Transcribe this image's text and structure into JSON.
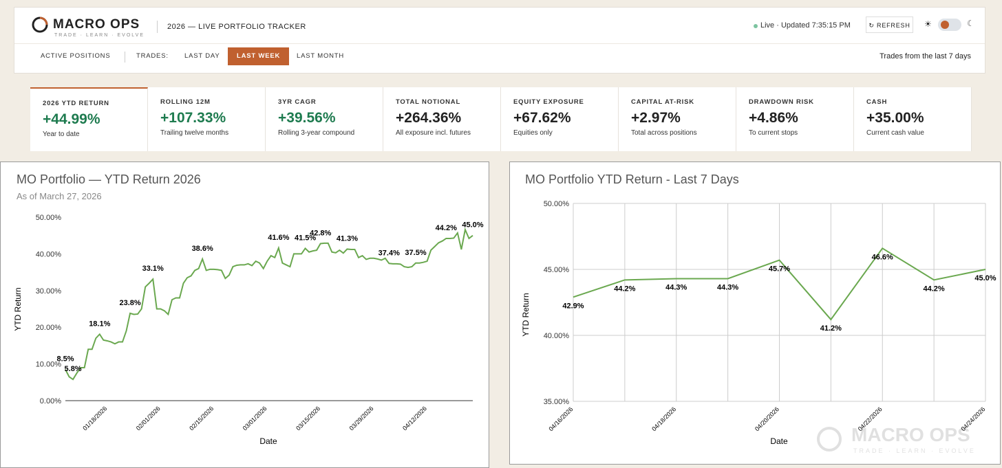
{
  "header": {
    "logo": "MACRO OPS",
    "tagline": "TRADE · LEARN · EVOLVE",
    "title": "2026 — LIVE PORTFOLIO TRACKER",
    "status": "Live · Updated 7:35:15 PM",
    "refresh": "REFRESH"
  },
  "nav": {
    "active_positions": "ACTIVE POSITIONS",
    "trades_label": "TRADES:",
    "tabs": [
      "LAST DAY",
      "LAST WEEK",
      "LAST MONTH"
    ],
    "note": "Trades from the last 7 days"
  },
  "kpis": [
    {
      "label": "2026 YTD RETURN",
      "value": "+44.99%",
      "sub": "Year to date"
    },
    {
      "label": "ROLLING 12M",
      "value": "+107.33%",
      "sub": "Trailing twelve months"
    },
    {
      "label": "3YR CAGR",
      "value": "+39.56%",
      "sub": "Rolling 3-year compound"
    },
    {
      "label": "TOTAL NOTIONAL",
      "value": "+264.36%",
      "sub": "All exposure incl. futures"
    },
    {
      "label": "EQUITY EXPOSURE",
      "value": "+67.62%",
      "sub": "Equities only"
    },
    {
      "label": "CAPITAL AT-RISK",
      "value": "+2.97%",
      "sub": "Total across positions"
    },
    {
      "label": "DRAWDOWN RISK",
      "value": "+4.86%",
      "sub": "To current stops"
    },
    {
      "label": "CASH",
      "value": "+35.00%",
      "sub": "Current cash value"
    }
  ],
  "chart_data": [
    {
      "type": "line",
      "title": "MO Portfolio — YTD Return 2026",
      "subtitle": "As of March 27, 2026",
      "x_label": "Date",
      "y_label": "YTD Return",
      "grid": false,
      "categories": [
        null,
        null,
        null,
        null,
        null,
        null,
        null,
        null,
        null,
        null,
        null,
        "01/18/2026",
        null,
        null,
        null,
        null,
        null,
        null,
        null,
        null,
        null,
        null,
        null,
        null,
        null,
        "02/01/2026",
        null,
        null,
        null,
        null,
        null,
        null,
        null,
        null,
        null,
        null,
        null,
        null,
        null,
        "02/15/2026",
        null,
        null,
        null,
        null,
        null,
        null,
        null,
        null,
        null,
        null,
        null,
        null,
        null,
        "03/01/2026",
        null,
        null,
        null,
        null,
        null,
        null,
        null,
        null,
        null,
        null,
        null,
        null,
        null,
        "03/15/2026",
        null,
        null,
        null,
        null,
        null,
        null,
        null,
        null,
        null,
        null,
        null,
        null,
        null,
        "03/29/2026",
        null,
        null,
        null,
        null,
        null,
        null,
        null,
        null,
        null,
        null,
        null,
        null,
        null,
        "04/12/2026",
        null,
        null,
        null,
        null,
        null,
        null,
        null,
        null,
        null,
        null,
        null,
        null
      ],
      "series": [
        {
          "name": "YTD Return",
          "color": "#6aa84f",
          "values": [
            8.5,
            6.5,
            5.8,
            7.5,
            9,
            9,
            14,
            14,
            17,
            18.1,
            16.5,
            16.3,
            16,
            15.5,
            16,
            16,
            19,
            23.8,
            23.5,
            23.6,
            25,
            31,
            32,
            33.1,
            25,
            25,
            24.5,
            23.5,
            27.5,
            28,
            28,
            32,
            33.5,
            34,
            35.5,
            36,
            38.6,
            35.5,
            35.8,
            35.8,
            35.7,
            35.5,
            33.3,
            34.2,
            36.5,
            36.9,
            37,
            37,
            37.3,
            36.8,
            38,
            37.5,
            36,
            38,
            39.5,
            39,
            41.6,
            37.5,
            37,
            36.5,
            40,
            40,
            40,
            41.5,
            40.5,
            40.8,
            41,
            42.8,
            42.9,
            42.9,
            40.5,
            40.3,
            41,
            40.2,
            41.3,
            41.2,
            41.2,
            39,
            39.5,
            38.5,
            38.8,
            38.8,
            38.6,
            38.3,
            38.8,
            37.4,
            37.3,
            37.3,
            37.2,
            36.5,
            36.3,
            36.5,
            37.5,
            37.5,
            37.7,
            38,
            41,
            42,
            43,
            43.5,
            44.2,
            44.2,
            44.3,
            45.7,
            41.2,
            46.6,
            44.2,
            45
          ],
          "value_labels": [
            "8.5%",
            null,
            "5.8%",
            null,
            null,
            null,
            null,
            null,
            null,
            "18.1%",
            null,
            null,
            null,
            null,
            null,
            null,
            null,
            "23.8%",
            null,
            null,
            null,
            null,
            null,
            "33.1%",
            null,
            null,
            null,
            null,
            null,
            null,
            null,
            null,
            null,
            null,
            null,
            null,
            "38.6%",
            null,
            null,
            null,
            null,
            null,
            null,
            null,
            null,
            null,
            null,
            null,
            null,
            null,
            null,
            null,
            null,
            null,
            null,
            null,
            "41.6%",
            null,
            null,
            null,
            null,
            null,
            null,
            "41.5%",
            null,
            null,
            null,
            "42.8%",
            null,
            null,
            null,
            null,
            null,
            null,
            "41.3%",
            null,
            null,
            null,
            null,
            null,
            null,
            null,
            null,
            null,
            null,
            "37.4%",
            null,
            null,
            null,
            null,
            null,
            null,
            "37.5%",
            null,
            null,
            null,
            null,
            null,
            null,
            null,
            "44.2%",
            null,
            null,
            null,
            null,
            null,
            null,
            "45.0%"
          ]
        }
      ],
      "ylim": [
        0,
        50
      ],
      "yticks": [
        {
          "value": 0,
          "label": "0.00%"
        },
        {
          "value": 10,
          "label": "10.00%"
        },
        {
          "value": 20,
          "label": "20.00%"
        },
        {
          "value": 30,
          "label": "30.00%"
        },
        {
          "value": 40,
          "label": "40.00%"
        },
        {
          "value": 50,
          "label": "50.00%"
        }
      ]
    },
    {
      "type": "line",
      "title": "MO Portfolio YTD Return - Last 7 Days",
      "x_label": "Date",
      "y_label": "YTD Return",
      "grid": true,
      "categories": [
        "04/16/2026",
        null,
        "04/18/2026",
        null,
        "04/20/2026",
        null,
        "04/22/2026",
        null,
        "04/24/2026"
      ],
      "series": [
        {
          "name": "YTD Return",
          "color": "#6aa84f",
          "values": [
            42.9,
            44.2,
            44.3,
            44.3,
            45.7,
            41.2,
            46.6,
            44.2,
            45
          ],
          "value_labels": [
            "42.9%",
            "44.2%",
            "44.3%",
            "44.3%",
            "45.7%",
            "41.2%",
            "46.6%",
            "44.2%",
            "45.0%"
          ]
        }
      ],
      "ylim": [
        35,
        50
      ],
      "yticks": [
        {
          "value": 35,
          "label": "35.00%"
        },
        {
          "value": 40,
          "label": "40.00%"
        },
        {
          "value": 45,
          "label": "45.00%"
        },
        {
          "value": 50,
          "label": "50.00%"
        }
      ]
    }
  ],
  "watermark": {
    "logo": "MACRO OPS",
    "tagline": "TRADE · LEARN · EVOLVE"
  }
}
